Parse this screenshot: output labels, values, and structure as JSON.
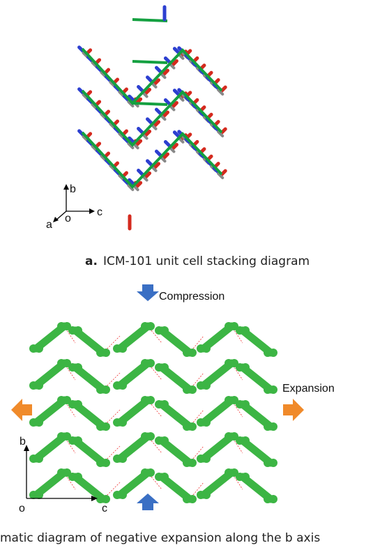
{
  "figure_a": {
    "axis_labels": {
      "b": "b",
      "c": "c",
      "a": "a",
      "o": "o"
    },
    "label": "a.",
    "caption": "ICM-101 unit cell stacking diagram"
  },
  "figure_b": {
    "compression": "Compression",
    "expansion": "Expansion",
    "axis_labels": {
      "b": "b",
      "o": "o",
      "c": "c"
    },
    "caption": "matic diagram of negative expansion along the b axis"
  }
}
